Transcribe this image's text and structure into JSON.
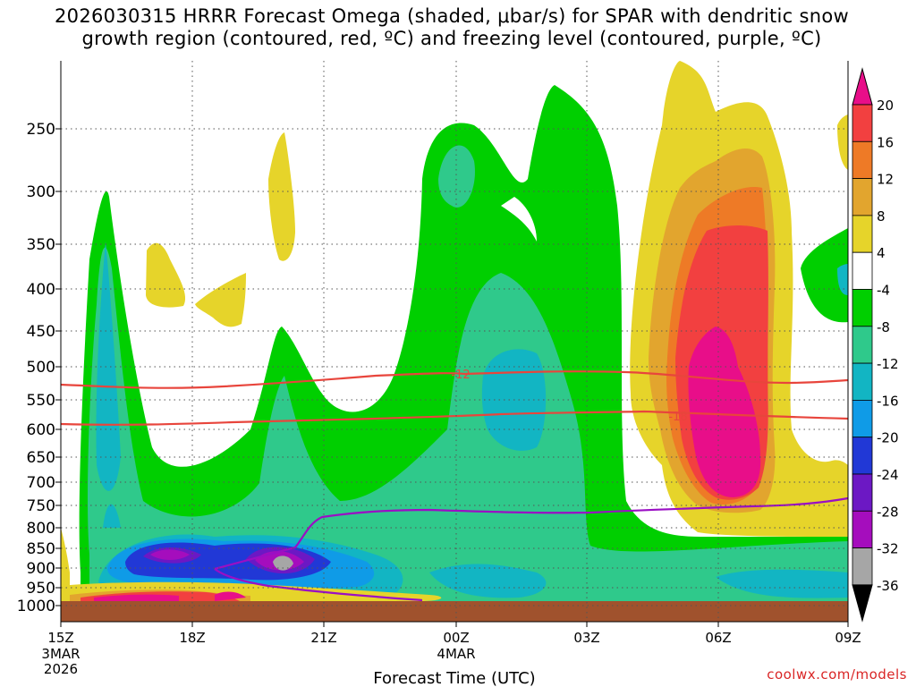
{
  "title": {
    "line1": "2026030315 HRRR Forecast Omega (shaded, μbar/s) for SPAR with dendritic snow",
    "line2": "growth region (contoured, red, ºC) and freezing level (contoured, purple, ºC)"
  },
  "credit": "coolwx.com/models",
  "colors": {
    "ground": "#a0522d",
    "dgz_contour": "#e8453c",
    "freezing_contour": "#9a0fc4"
  },
  "chart_data": {
    "type": "heatmap",
    "title": "2026030315 HRRR Forecast Omega (shaded, μbar/s) for SPAR with dendritic snow growth region (contoured, red, ºC) and freezing level (contoured, purple, ºC)",
    "xlabel": "Forecast Time (UTC)",
    "ylabel": "",
    "x_ticks": [
      {
        "label": "15Z",
        "sub": [
          "3MAR",
          "2026"
        ]
      },
      {
        "label": "18Z",
        "sub": []
      },
      {
        "label": "21Z",
        "sub": []
      },
      {
        "label": "00Z",
        "sub": [
          "4MAR"
        ]
      },
      {
        "label": "03Z",
        "sub": []
      },
      {
        "label": "06Z",
        "sub": []
      },
      {
        "label": "09Z",
        "sub": []
      }
    ],
    "y_ticks": [
      "250",
      "300",
      "350",
      "400",
      "450",
      "500",
      "550",
      "600",
      "650",
      "700",
      "750",
      "800",
      "850",
      "900",
      "950",
      "1000"
    ],
    "colorbar": {
      "labels": [
        "20",
        "16",
        "12",
        "8",
        "4",
        "-4",
        "-8",
        "-12",
        "-16",
        "-20",
        "-24",
        "-28",
        "-32",
        "-36"
      ],
      "colors": [
        "#e80e89",
        "#f24040",
        "#ee7a26",
        "#e2a52e",
        "#e6d42a",
        "#ffffff",
        "#00cf00",
        "#2fc98b",
        "#12b5c3",
        "#0f9be7",
        "#2138d6",
        "#6c18c4",
        "#a50dbd",
        "#a6a6a6"
      ]
    },
    "contours": [
      {
        "name": "-12",
        "color": "#e8453c",
        "label": "-12"
      },
      {
        "name": "-18",
        "color": "#e8453c",
        "label": "-18"
      },
      {
        "name": "0",
        "color": "#9a0fc4",
        "label": ""
      }
    ],
    "grid": true,
    "legend": "colorbar-right"
  }
}
